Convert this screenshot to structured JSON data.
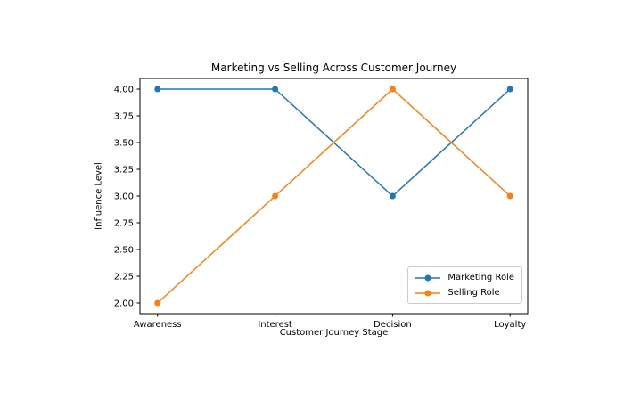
{
  "figure": {
    "background": "#ffffff",
    "frame_color": "#000000"
  },
  "chart_data": {
    "type": "line",
    "title": "Marketing vs Selling Across Customer Journey",
    "xlabel": "Customer Journey Stage",
    "ylabel": "Influence Level",
    "categories": [
      "Awareness",
      "Interest",
      "Decision",
      "Loyalty"
    ],
    "series": [
      {
        "name": "Marketing Role",
        "values": [
          4,
          4,
          3,
          4
        ],
        "color": "#1f77b4"
      },
      {
        "name": "Selling Role",
        "values": [
          2,
          3,
          4,
          3
        ],
        "color": "#ff7f0e"
      }
    ],
    "ytick_values": [
      2.0,
      2.25,
      2.5,
      2.75,
      3.0,
      3.25,
      3.5,
      3.75,
      4.0
    ],
    "ytick_labels": [
      "2.00",
      "2.25",
      "2.50",
      "2.75",
      "3.00",
      "3.25",
      "3.50",
      "3.75",
      "4.00"
    ],
    "ylim": [
      1.9,
      4.1
    ],
    "xlim": [
      -0.15,
      3.15
    ],
    "grid": false,
    "marker": "o",
    "legend_position": "lower right"
  }
}
